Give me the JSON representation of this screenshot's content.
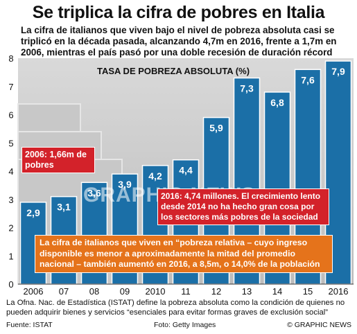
{
  "header": {
    "title": "Se triplica la cifra de pobres en Italia",
    "subtitle": "La cifra de italianos que viven bajo el nivel de pobreza absoluta casi se triplicó en la década pasada, alcanzando 4,7m en 2016, frente a 1,7m en 2006, mientras el país pasó por una doble recesión de duración récord"
  },
  "chart_data": {
    "type": "bar",
    "title": "TASA DE POBREZA ABSOLUTA (%)",
    "categories": [
      "2006",
      "07",
      "08",
      "09",
      "2010",
      "11",
      "12",
      "13",
      "14",
      "15",
      "2016"
    ],
    "values": [
      2.9,
      3.1,
      3.6,
      3.9,
      4.2,
      4.4,
      5.9,
      7.3,
      6.8,
      7.6,
      7.9
    ],
    "value_labels": [
      "2,9",
      "3,1",
      "3,6",
      "3,9",
      "4,2",
      "4,4",
      "5,9",
      "7,3",
      "6,8",
      "7,6",
      "7,9"
    ],
    "yticks": [
      "0",
      "1",
      "2",
      "3",
      "4",
      "5",
      "6",
      "7",
      "8"
    ],
    "ylim": [
      0,
      8
    ],
    "grid": false,
    "bar_color": "#1b6fa7",
    "axis_color": "#333333"
  },
  "callouts": {
    "c2006": "2006: 1,66m de pobres",
    "c2016": "2016: 4,74 millones. El crecimiento lento desde 2014 no ha hecho gran cosa por los sectores más pobres de la sociedad",
    "relative": "La cifra de italianos que viven en “pobreza relativa – cuyo ingreso disponible es menor a aproximadamente la mitad del promedio nacional – también aumentó en 2016, a 8,5m, o 14,0% de la población"
  },
  "watermark": "GRAPHIC NEWS",
  "footer": {
    "note": "La Ofna. Nac. de Estadística (ISTAT) define la pobreza absoluta como la condición de quienes no pueden adquirir bienes y servicios “esenciales para evitar formas graves de exclusión social”",
    "source": "Fuente: ISTAT",
    "photo": "Foto: Getty Images",
    "credit": "© GRAPHIC NEWS"
  }
}
